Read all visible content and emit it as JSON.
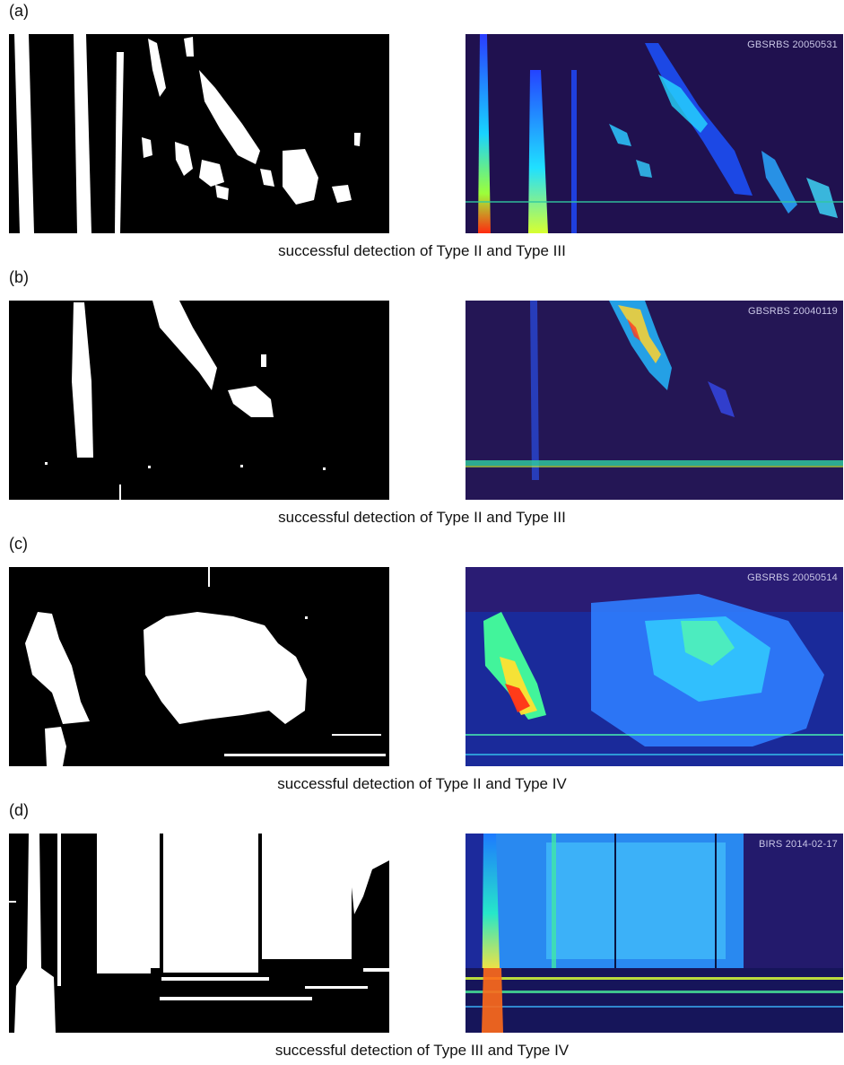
{
  "panels": [
    {
      "label": "(a)",
      "stamp": "GBSRBS 20050531",
      "caption": "successful detection of Type II and Type III"
    },
    {
      "label": "(b)",
      "stamp": "GBSRBS 20040119",
      "caption": "successful detection of Type II and Type III"
    },
    {
      "label": "(c)",
      "stamp": "GBSRBS 20050514",
      "caption": "successful detection of Type II and Type IV"
    },
    {
      "label": "(d)",
      "stamp": "BIRS 2014-02-17",
      "caption": "successful detection of Type III and Type IV"
    }
  ]
}
